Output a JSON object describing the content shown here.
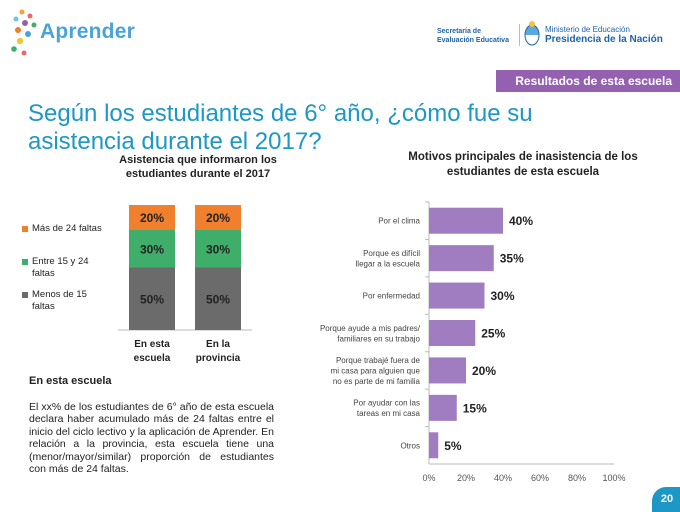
{
  "header": {
    "brand": "Aprender",
    "secretaria_line1": "Secretaría de",
    "secretaria_line2": "Evaluación Educativa",
    "ministerio_line1": "Ministerio de Educación",
    "ministerio_line2": "Presidencia de la Nación"
  },
  "banner": "Resultados de esta escuela",
  "title": "Según los estudiantes de 6° año, ¿cómo fue su asistencia durante el 2017?",
  "section": {
    "heading": "En esta escuela",
    "body": "El xx% de los estudiantes de 6° año de esta escuela declara haber acumulado más de 24 faltas entre el inicio del ciclo lectivo y la aplicación de Aprender. En relación a la provincia, esta escuela tiene una (menor/mayor/similar) proporción de estudiantes con más de 24 faltas."
  },
  "page_number": "20",
  "colors": {
    "orange": "#f07f2e",
    "green": "#3fae6a",
    "gray": "#6b6b6b",
    "purple": "#a07cc0",
    "title_blue": "#1d97c5",
    "banner_purple": "#9361b0"
  },
  "chart_data": [
    {
      "type": "bar",
      "stacked": true,
      "title": "Asistencia que informaron los estudiantes durante el 2017",
      "categories": [
        "En esta escuela",
        "En la provincia"
      ],
      "series": [
        {
          "name": "Menos de 15 faltas",
          "values": [
            50,
            50
          ],
          "labels": [
            "50%",
            "50%"
          ],
          "color": "#6b6b6b"
        },
        {
          "name": "Entre 15 y 24 faltas",
          "values": [
            30,
            30
          ],
          "labels": [
            "30%",
            "30%"
          ],
          "color": "#3fae6a"
        },
        {
          "name": "Más de 24 faltas",
          "values": [
            20,
            20
          ],
          "labels": [
            "20%",
            "20%"
          ],
          "color": "#f07f2e"
        }
      ],
      "legend": [
        "Más de 24 faltas",
        "Entre 15 y 24 faltas",
        "Menos de 15 faltas"
      ],
      "ylim": [
        0,
        100
      ]
    },
    {
      "type": "bar",
      "orientation": "horizontal",
      "title": "Motivos principales de  inasistencia de los estudiantes de esta escuela",
      "categories": [
        [
          "Por el clima"
        ],
        [
          "Porque es difícil",
          "llegar a la escuela"
        ],
        [
          "Por enfermedad"
        ],
        [
          "Porque ayude a mis padres/",
          "familiares en su trabajo"
        ],
        [
          "Porque trabajé fuera de",
          "mi casa para alguien que",
          "no es parte de mi familia"
        ],
        [
          "Por ayudar con las",
          "tareas en mi casa"
        ],
        [
          "Otros"
        ]
      ],
      "values": [
        40,
        35,
        30,
        25,
        20,
        15,
        5
      ],
      "labels": [
        "40%",
        "35%",
        "30%",
        "25%",
        "20%",
        "15%",
        "5%"
      ],
      "xlim": [
        0,
        100
      ],
      "xticks": [
        "0%",
        "20%",
        "40%",
        "60%",
        "80%",
        "100%"
      ],
      "xtick_values": [
        0,
        20,
        40,
        60,
        80,
        100
      ],
      "color": "#a07cc0",
      "grid": false
    }
  ]
}
